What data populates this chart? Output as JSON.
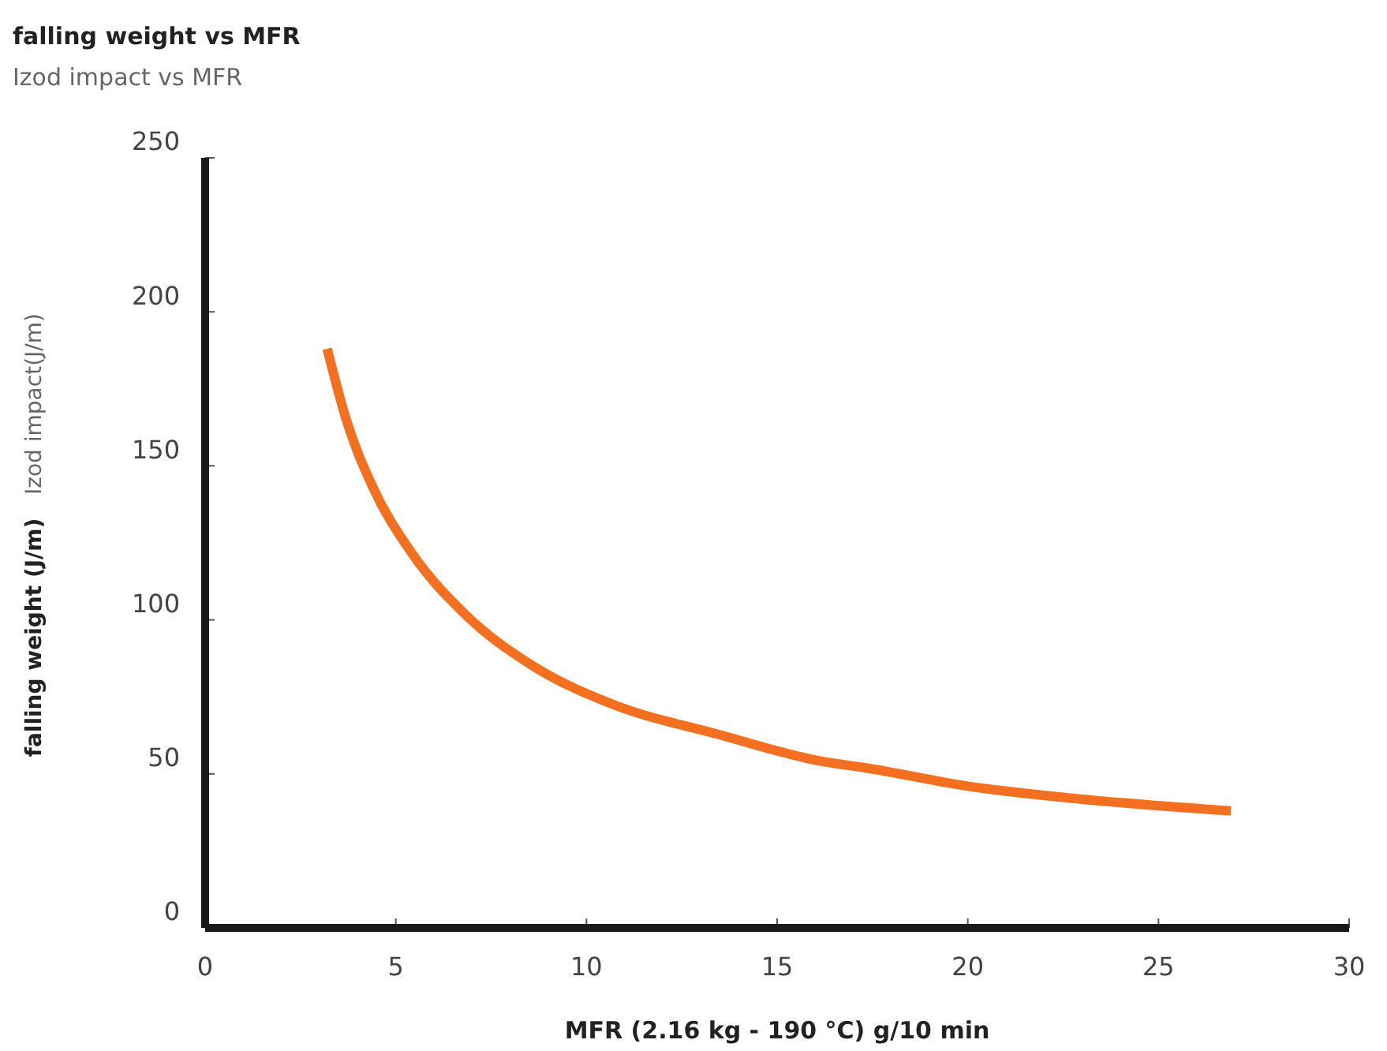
{
  "chart_data": {
    "type": "line",
    "title": "falling weight vs MFR",
    "subtitle": "Izod impact vs MFR",
    "xlabel": "MFR (2.16 kg - 190 °C) g/10 min",
    "ylabel": "falling weight (J/m)",
    "annotations": [
      "Izod impact(J/m)"
    ],
    "x": [
      3.2,
      3.7,
      4.4,
      5.4,
      6.8,
      8.6,
      10.6,
      13.4,
      16.2,
      17.3,
      20,
      22.8,
      26.9
    ],
    "series": [
      {
        "color": "#f37021",
        "values": [
          188,
          165,
          143,
          122,
          102,
          85,
          73,
          63,
          54,
          52,
          46,
          42,
          38
        ]
      }
    ],
    "xlim": [
      0,
      30
    ],
    "xticks": [
      0,
      5,
      10,
      15,
      20,
      25,
      30
    ],
    "ylim": [
      0,
      250
    ],
    "yticks": [
      0,
      50,
      100,
      150,
      200,
      250
    ],
    "grid": false,
    "marker": "none",
    "line_style": "solid"
  }
}
